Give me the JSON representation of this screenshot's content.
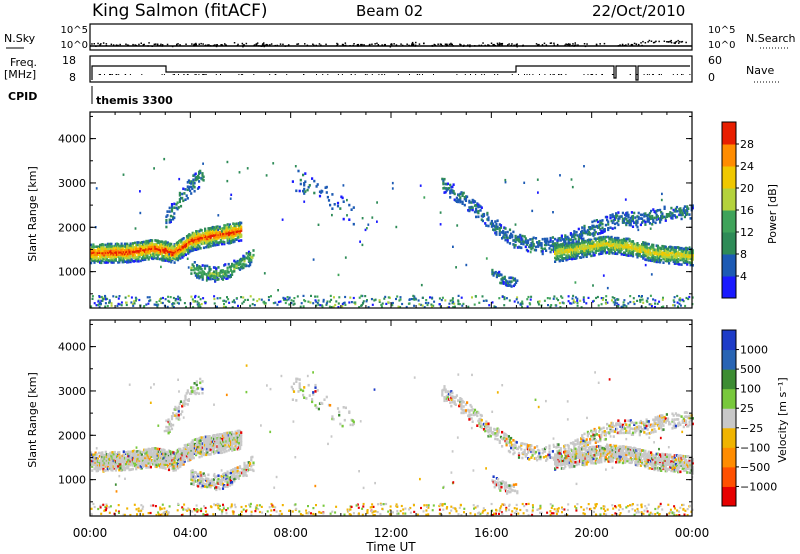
{
  "header": {
    "station": "King Salmon (fitACF)",
    "beam": "Beam 02",
    "date": "22/Oct/2010"
  },
  "top_panels": {
    "nsky_label": "N.Sky",
    "nsky_ticks": [
      "10^5",
      "10^0"
    ],
    "nsearch_label": "N.Search",
    "nsearch_ticks": [
      "10^5",
      "10^0"
    ],
    "freq_label": "Freq.",
    "freq_unit": "[MHz]",
    "freq_ticks": [
      "18",
      "8"
    ],
    "nave_label": "Nave",
    "nave_ticks": [
      "60",
      "0"
    ],
    "cpid_label": "CPID",
    "cpid_value": "themis 3300"
  },
  "chart_data": [
    {
      "type": "heatmap",
      "title": "",
      "xlabel": "",
      "ylabel": "Slant Range [km]",
      "ylim": [
        180,
        4600
      ],
      "yticks": [
        "1000",
        "2000",
        "3000",
        "4000"
      ],
      "xlim_hours": [
        0,
        24
      ],
      "colorbar": {
        "label": "Power [dB]",
        "range": [
          0,
          32
        ],
        "ticks": [
          "4",
          "8",
          "12",
          "16",
          "20",
          "24",
          "28"
        ],
        "colors": [
          "#1a1aff",
          "#1c5ab4",
          "#2e8b57",
          "#3fa35a",
          "#b4d23c",
          "#f0c800",
          "#ff8c00",
          "#e81e00"
        ]
      }
    },
    {
      "type": "heatmap",
      "title": "",
      "xlabel": "Time UT",
      "ylabel": "Slant Range [km]",
      "ylim": [
        180,
        4600
      ],
      "yticks": [
        "1000",
        "2000",
        "3000",
        "4000"
      ],
      "xticks": [
        "00:00",
        "04:00",
        "08:00",
        "12:00",
        "16:00",
        "20:00",
        "00:00"
      ],
      "xlim_hours": [
        0,
        24
      ],
      "colorbar": {
        "label": "Velocity [m s⁻¹]",
        "ticks": [
          "1000",
          "500",
          "100",
          "25",
          "−25",
          "−100",
          "−500",
          "−1000"
        ],
        "colors": [
          "#1e3cc8",
          "#2864b4",
          "#3c8c32",
          "#78c83c",
          "#c8c8c8",
          "#f0b400",
          "#ff8c00",
          "#ff5000",
          "#e60000"
        ]
      }
    }
  ],
  "x_axis": {
    "label": "Time UT",
    "ticks": [
      "00:00",
      "04:00",
      "08:00",
      "12:00",
      "16:00",
      "20:00",
      "00:00"
    ]
  },
  "bands": {
    "main_band": [
      [
        0,
        1450
      ],
      [
        0.5,
        1450
      ],
      [
        1,
        1460
      ],
      [
        1.5,
        1470
      ],
      [
        2,
        1500
      ],
      [
        2.5,
        1550
      ],
      [
        3,
        1500
      ],
      [
        3.3,
        1450
      ],
      [
        3.6,
        1560
      ],
      [
        4,
        1720
      ],
      [
        4.5,
        1800
      ],
      [
        5,
        1850
      ],
      [
        5.5,
        1900
      ],
      [
        6,
        1950
      ]
    ],
    "low_band": [
      [
        4,
        1100
      ],
      [
        4.5,
        1000
      ],
      [
        5,
        950
      ],
      [
        5.5,
        1050
      ],
      [
        6,
        1200
      ],
      [
        6.5,
        1400
      ]
    ],
    "upper_arc": [
      [
        3,
        2200
      ],
      [
        3.5,
        2600
      ],
      [
        4,
        3000
      ],
      [
        4.5,
        3200
      ]
    ],
    "right_arc": [
      [
        14,
        3000
      ],
      [
        15,
        2600
      ],
      [
        16,
        2100
      ],
      [
        17,
        1700
      ],
      [
        18,
        1600
      ],
      [
        19,
        1700
      ],
      [
        20,
        2000
      ],
      [
        21,
        2200
      ],
      [
        22,
        2200
      ],
      [
        23,
        2350
      ],
      [
        24,
        2400
      ]
    ],
    "right_band": [
      [
        18.5,
        1450
      ],
      [
        19.5,
        1550
      ],
      [
        20.5,
        1650
      ],
      [
        21.5,
        1600
      ],
      [
        22.5,
        1450
      ],
      [
        23.5,
        1400
      ],
      [
        24,
        1380
      ]
    ],
    "mid_scatter": [
      [
        8,
        3100
      ],
      [
        9,
        2900
      ],
      [
        10,
        2500
      ],
      [
        10.5,
        2200
      ]
    ],
    "low_patch": [
      [
        16,
        1000
      ],
      [
        16.5,
        850
      ],
      [
        17,
        800
      ]
    ]
  },
  "colors": {
    "axis": "#000000",
    "grey": "#c8c8c8"
  }
}
